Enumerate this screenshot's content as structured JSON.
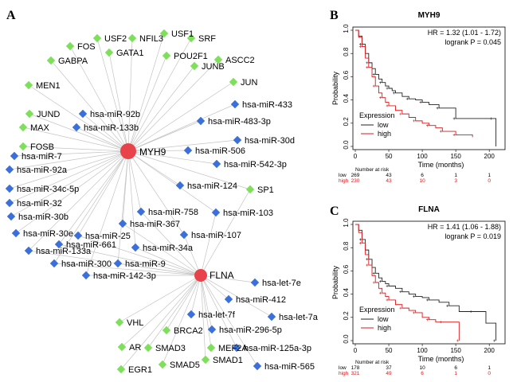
{
  "panels": {
    "a": "A",
    "b": "B",
    "c": "C"
  },
  "colors": {
    "tf": "#7ee05a",
    "mirna": "#3b6fd9",
    "hub": "#e8434a",
    "edge": "#c4c4c4",
    "low": "#222222",
    "high": "#d7191c"
  },
  "network": {
    "hubs": [
      {
        "id": "MYH9",
        "label": "MYH9"
      },
      {
        "id": "FLNA",
        "label": "FLNA"
      }
    ],
    "nodes": [
      {
        "label": "FOS",
        "type": "tf",
        "targets": [
          "MYH9"
        ]
      },
      {
        "label": "USF2",
        "type": "tf",
        "targets": [
          "MYH9"
        ]
      },
      {
        "label": "NFIL3",
        "type": "tf",
        "targets": [
          "MYH9"
        ]
      },
      {
        "label": "USF1",
        "type": "tf",
        "targets": [
          "MYH9"
        ]
      },
      {
        "label": "SRF",
        "type": "tf",
        "targets": [
          "MYH9"
        ]
      },
      {
        "label": "GATA1",
        "type": "tf",
        "targets": [
          "MYH9"
        ]
      },
      {
        "label": "GABPA",
        "type": "tf",
        "targets": [
          "MYH9"
        ]
      },
      {
        "label": "POU2F1",
        "type": "tf",
        "targets": [
          "MYH9"
        ]
      },
      {
        "label": "ASCC2",
        "type": "tf",
        "targets": [
          "MYH9"
        ]
      },
      {
        "label": "JUNB",
        "type": "tf",
        "targets": [
          "MYH9"
        ]
      },
      {
        "label": "MEN1",
        "type": "tf",
        "targets": [
          "MYH9"
        ]
      },
      {
        "label": "JUN",
        "type": "tf",
        "targets": [
          "MYH9"
        ]
      },
      {
        "label": "hsa-miR-92b",
        "type": "mirna",
        "targets": [
          "MYH9"
        ]
      },
      {
        "label": "hsa-miR-433",
        "type": "mirna",
        "targets": [
          "MYH9"
        ]
      },
      {
        "label": "JUND",
        "type": "tf",
        "targets": [
          "MYH9"
        ]
      },
      {
        "label": "hsa-miR-133b",
        "type": "mirna",
        "targets": [
          "MYH9"
        ]
      },
      {
        "label": "hsa-miR-483-3p",
        "type": "mirna",
        "targets": [
          "MYH9"
        ]
      },
      {
        "label": "MAX",
        "type": "tf",
        "targets": [
          "MYH9"
        ]
      },
      {
        "label": "hsa-miR-30d",
        "type": "mirna",
        "targets": [
          "MYH9"
        ]
      },
      {
        "label": "FOSB",
        "type": "tf",
        "targets": [
          "MYH9"
        ]
      },
      {
        "label": "hsa-miR-506",
        "type": "mirna",
        "targets": [
          "MYH9"
        ]
      },
      {
        "label": "hsa-miR-7",
        "type": "mirna",
        "targets": [
          "MYH9"
        ]
      },
      {
        "label": "hsa-miR-542-3p",
        "type": "mirna",
        "targets": [
          "MYH9"
        ]
      },
      {
        "label": "hsa-miR-92a",
        "type": "mirna",
        "targets": [
          "MYH9"
        ]
      },
      {
        "label": "hsa-miR-124",
        "type": "mirna",
        "targets": [
          "MYH9"
        ]
      },
      {
        "label": "SP1",
        "type": "tf",
        "targets": [
          "MYH9",
          "FLNA"
        ]
      },
      {
        "label": "hsa-miR-34c-5p",
        "type": "mirna",
        "targets": [
          "MYH9"
        ]
      },
      {
        "label": "hsa-miR-32",
        "type": "mirna",
        "targets": [
          "MYH9"
        ]
      },
      {
        "label": "hsa-miR-103",
        "type": "mirna",
        "targets": [
          "MYH9",
          "FLNA"
        ]
      },
      {
        "label": "hsa-miR-758",
        "type": "mirna",
        "targets": [
          "MYH9",
          "FLNA"
        ]
      },
      {
        "label": "hsa-miR-30b",
        "type": "mirna",
        "targets": [
          "MYH9"
        ]
      },
      {
        "label": "hsa-miR-367",
        "type": "mirna",
        "targets": [
          "MYH9",
          "FLNA"
        ]
      },
      {
        "label": "hsa-miR-30e",
        "type": "mirna",
        "targets": [
          "MYH9"
        ]
      },
      {
        "label": "hsa-miR-25",
        "type": "mirna",
        "targets": [
          "MYH9",
          "FLNA"
        ]
      },
      {
        "label": "hsa-miR-107",
        "type": "mirna",
        "targets": [
          "MYH9",
          "FLNA"
        ]
      },
      {
        "label": "hsa-miR-661",
        "type": "mirna",
        "targets": [
          "MYH9",
          "FLNA"
        ]
      },
      {
        "label": "hsa-miR-133a",
        "type": "mirna",
        "targets": [
          "MYH9",
          "FLNA"
        ]
      },
      {
        "label": "hsa-miR-34a",
        "type": "mirna",
        "targets": [
          "MYH9",
          "FLNA"
        ]
      },
      {
        "label": "hsa-miR-300",
        "type": "mirna",
        "targets": [
          "MYH9",
          "FLNA"
        ]
      },
      {
        "label": "hsa-miR-9",
        "type": "mirna",
        "targets": [
          "MYH9",
          "FLNA"
        ]
      },
      {
        "label": "hsa-miR-142-3p",
        "type": "mirna",
        "targets": [
          "MYH9",
          "FLNA"
        ]
      },
      {
        "label": "hsa-let-7e",
        "type": "mirna",
        "targets": [
          "FLNA"
        ]
      },
      {
        "label": "hsa-miR-412",
        "type": "mirna",
        "targets": [
          "FLNA"
        ]
      },
      {
        "label": "hsa-let-7f",
        "type": "mirna",
        "targets": [
          "FLNA"
        ]
      },
      {
        "label": "hsa-let-7a",
        "type": "mirna",
        "targets": [
          "FLNA"
        ]
      },
      {
        "label": "VHL",
        "type": "tf",
        "targets": [
          "FLNA"
        ]
      },
      {
        "label": "BRCA2",
        "type": "tf",
        "targets": [
          "FLNA"
        ]
      },
      {
        "label": "hsa-miR-296-5p",
        "type": "mirna",
        "targets": [
          "FLNA"
        ]
      },
      {
        "label": "AR",
        "type": "tf",
        "targets": [
          "FLNA"
        ]
      },
      {
        "label": "SMAD3",
        "type": "tf",
        "targets": [
          "FLNA"
        ]
      },
      {
        "label": "MEF2A",
        "type": "tf",
        "targets": [
          "FLNA"
        ]
      },
      {
        "label": "hsa-miR-125a-3p",
        "type": "mirna",
        "targets": [
          "FLNA"
        ]
      },
      {
        "label": "SMAD1",
        "type": "tf",
        "targets": [
          "FLNA"
        ]
      },
      {
        "label": "EGR1",
        "type": "tf",
        "targets": [
          "FLNA"
        ]
      },
      {
        "label": "SMAD5",
        "type": "tf",
        "targets": [
          "FLNA"
        ]
      },
      {
        "label": "hsa-miR-565",
        "type": "mirna",
        "targets": [
          "FLNA"
        ]
      }
    ]
  },
  "chart_data": [
    {
      "type": "line",
      "title": "MYH9",
      "hr_text": "HR = 1.32 (1.01 - 1.72)",
      "p_text": "logrank P = 0.045",
      "xlabel": "Time (months)",
      "ylabel": "Probability",
      "xlim": [
        0,
        220
      ],
      "ylim": [
        0,
        1.0
      ],
      "xticks": [
        0,
        50,
        100,
        150,
        200
      ],
      "yticks": [
        "0.0",
        "0.2",
        "0.4",
        "0.6",
        "0.8",
        "1.0"
      ],
      "legend_title": "Expression",
      "series": [
        {
          "name": "low",
          "points": [
            [
              0,
              1.0
            ],
            [
              5,
              0.95
            ],
            [
              10,
              0.88
            ],
            [
              15,
              0.8
            ],
            [
              20,
              0.72
            ],
            [
              25,
              0.67
            ],
            [
              30,
              0.62
            ],
            [
              35,
              0.58
            ],
            [
              40,
              0.55
            ],
            [
              45,
              0.52
            ],
            [
              50,
              0.5
            ],
            [
              55,
              0.48
            ],
            [
              60,
              0.46
            ],
            [
              70,
              0.43
            ],
            [
              80,
              0.41
            ],
            [
              90,
              0.4
            ],
            [
              100,
              0.38
            ],
            [
              110,
              0.36
            ],
            [
              125,
              0.33
            ],
            [
              140,
              0.33
            ],
            [
              150,
              0.24
            ],
            [
              170,
              0.24
            ],
            [
              205,
              0.24
            ],
            [
              210,
              0.0
            ]
          ]
        },
        {
          "name": "high",
          "points": [
            [
              0,
              1.0
            ],
            [
              5,
              0.94
            ],
            [
              10,
              0.86
            ],
            [
              15,
              0.76
            ],
            [
              20,
              0.68
            ],
            [
              25,
              0.6
            ],
            [
              30,
              0.52
            ],
            [
              35,
              0.46
            ],
            [
              40,
              0.42
            ],
            [
              45,
              0.38
            ],
            [
              50,
              0.35
            ],
            [
              60,
              0.31
            ],
            [
              70,
              0.28
            ],
            [
              80,
              0.25
            ],
            [
              90,
              0.22
            ],
            [
              100,
              0.2
            ],
            [
              110,
              0.18
            ],
            [
              120,
              0.16
            ],
            [
              130,
              0.13
            ],
            [
              140,
              0.13
            ],
            [
              150,
              0.1
            ],
            [
              175,
              0.08
            ]
          ]
        }
      ],
      "risk_table": {
        "header": "Number at risk",
        "times": [
          0,
          50,
          100,
          150,
          200
        ],
        "rows": [
          {
            "name": "low",
            "values": [
              "269",
              "43",
              "6",
              "1",
              "1"
            ]
          },
          {
            "name": "high",
            "values": [
              "230",
              "43",
              "10",
              "3",
              "0"
            ]
          }
        ]
      }
    },
    {
      "type": "line",
      "title": "FLNA",
      "hr_text": "HR = 1.41 (1.06 - 1.88)",
      "p_text": "logrank P = 0.019",
      "xlabel": "Time (months)",
      "ylabel": "Probability",
      "xlim": [
        0,
        220
      ],
      "ylim": [
        0,
        1.0
      ],
      "xticks": [
        0,
        50,
        100,
        150,
        200
      ],
      "yticks": [
        "0.0",
        "0.2",
        "0.4",
        "0.6",
        "0.8",
        "1.0"
      ],
      "legend_title": "Expression",
      "series": [
        {
          "name": "low",
          "points": [
            [
              0,
              1.0
            ],
            [
              5,
              0.95
            ],
            [
              10,
              0.87
            ],
            [
              15,
              0.78
            ],
            [
              20,
              0.7
            ],
            [
              25,
              0.63
            ],
            [
              30,
              0.58
            ],
            [
              35,
              0.54
            ],
            [
              40,
              0.51
            ],
            [
              45,
              0.49
            ],
            [
              50,
              0.47
            ],
            [
              60,
              0.45
            ],
            [
              70,
              0.42
            ],
            [
              80,
              0.4
            ],
            [
              90,
              0.38
            ],
            [
              100,
              0.37
            ],
            [
              110,
              0.35
            ],
            [
              125,
              0.33
            ],
            [
              140,
              0.3
            ],
            [
              155,
              0.25
            ],
            [
              175,
              0.25
            ],
            [
              195,
              0.15
            ],
            [
              210,
              0.0
            ]
          ]
        },
        {
          "name": "high",
          "points": [
            [
              0,
              1.0
            ],
            [
              5,
              0.93
            ],
            [
              10,
              0.84
            ],
            [
              15,
              0.74
            ],
            [
              20,
              0.65
            ],
            [
              25,
              0.56
            ],
            [
              30,
              0.5
            ],
            [
              35,
              0.45
            ],
            [
              40,
              0.41
            ],
            [
              45,
              0.38
            ],
            [
              50,
              0.35
            ],
            [
              60,
              0.31
            ],
            [
              70,
              0.28
            ],
            [
              80,
              0.26
            ],
            [
              90,
              0.24
            ],
            [
              100,
              0.2
            ],
            [
              110,
              0.18
            ],
            [
              120,
              0.16
            ],
            [
              130,
              0.16
            ],
            [
              145,
              0.16
            ],
            [
              155,
              0.0
            ]
          ]
        }
      ],
      "risk_table": {
        "header": "Number at risk",
        "times": [
          0,
          50,
          100,
          150,
          200
        ],
        "rows": [
          {
            "name": "low",
            "values": [
              "178",
              "37",
              "10",
              "6",
              "1"
            ]
          },
          {
            "name": "high",
            "values": [
              "321",
              "49",
              "6",
              "1",
              "0"
            ]
          }
        ]
      }
    }
  ]
}
